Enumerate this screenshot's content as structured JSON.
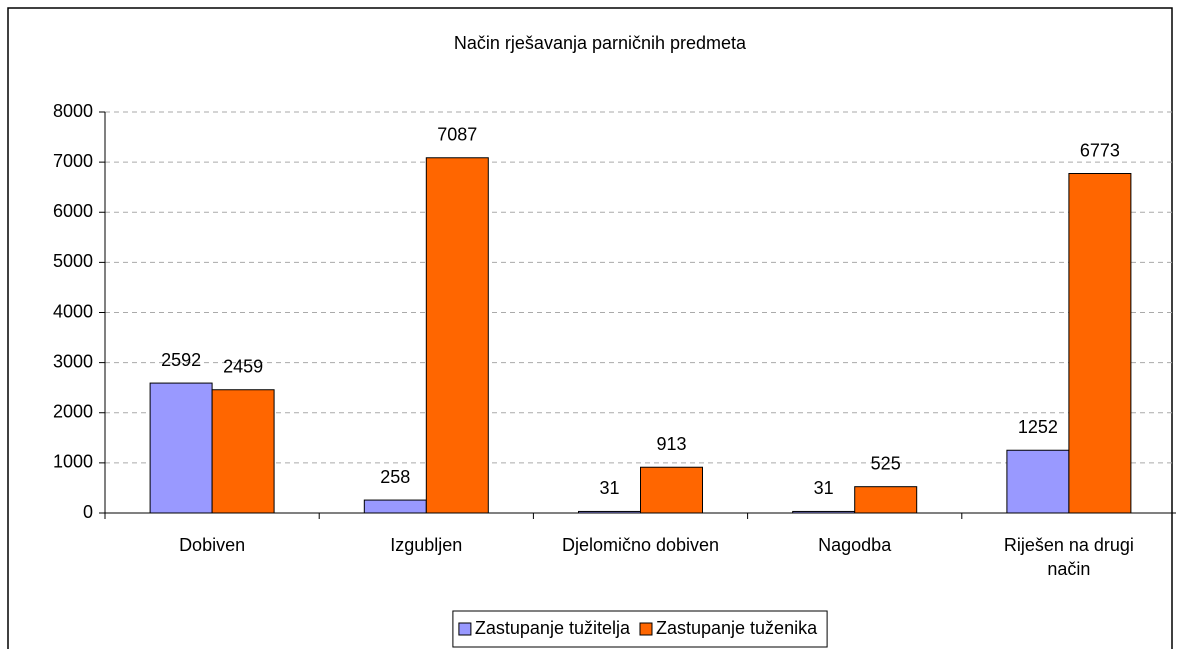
{
  "chart_data": {
    "type": "bar",
    "title": "Način rješavanja parničnih predmeta",
    "categories": [
      "Dobiven",
      "Izgubljen",
      "Djelomično dobiven",
      "Nagodba",
      "Riješen na drugi način"
    ],
    "series": [
      {
        "name": "Zastupanje tužitelja",
        "color": "#9999ff",
        "values": [
          2592,
          258,
          31,
          31,
          1252
        ]
      },
      {
        "name": "Zastupanje tuženika",
        "color": "#ff6600",
        "values": [
          2459,
          7087,
          913,
          525,
          6773
        ]
      }
    ],
    "ylim": [
      0,
      8000
    ],
    "yticks": [
      0,
      1000,
      2000,
      3000,
      4000,
      5000,
      6000,
      7000,
      8000
    ],
    "grid": true,
    "legend": "bottom"
  }
}
